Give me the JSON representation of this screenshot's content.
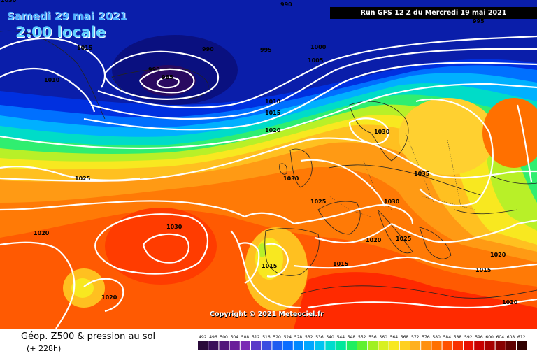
{
  "header": {
    "date": "Samedi 29 mai 2021",
    "time": "2:00 locale",
    "run": "Run GFS 12 Z du Mercredi 19 mai 2021"
  },
  "copyright": "Copyright © 2021 Meteociel.fr",
  "footer": {
    "title": "Géop. Z500 & pression au sol",
    "hours": "(+ 228h)"
  },
  "isobar_labels": [
    {
      "text": "990"
    },
    {
      "text": "995"
    },
    {
      "text": "1000"
    },
    {
      "text": "1005"
    },
    {
      "text": "1015"
    },
    {
      "text": "1010"
    },
    {
      "text": "990"
    },
    {
      "text": "990"
    },
    {
      "text": "985"
    },
    {
      "text": "1010"
    },
    {
      "text": "1015"
    },
    {
      "text": "1020"
    },
    {
      "text": "1030"
    },
    {
      "text": "1025"
    },
    {
      "text": "1030"
    },
    {
      "text": "1035"
    },
    {
      "text": "1025"
    },
    {
      "text": "1030"
    },
    {
      "text": "1030"
    },
    {
      "text": "1020"
    },
    {
      "text": "1025"
    },
    {
      "text": "1020"
    },
    {
      "text": "1015"
    },
    {
      "text": "1015"
    },
    {
      "text": "1015"
    },
    {
      "text": "1020"
    },
    {
      "text": "1020"
    },
    {
      "text": "1010"
    },
    {
      "text": "995"
    },
    {
      "text": "1030"
    }
  ],
  "legend": {
    "values": [
      "492",
      "496",
      "500",
      "504",
      "508",
      "512",
      "516",
      "520",
      "524",
      "528",
      "532",
      "536",
      "540",
      "544",
      "548",
      "552",
      "556",
      "560",
      "564",
      "568",
      "572",
      "576",
      "580",
      "584",
      "588",
      "592",
      "596",
      "600",
      "604",
      "608",
      "612"
    ],
    "colors": [
      "#2a0a3a",
      "#3a0f5a",
      "#52167a",
      "#6a1e9a",
      "#7a2ab4",
      "#5a3cc8",
      "#3a4ce0",
      "#1e5cf0",
      "#0a6cff",
      "#0088ff",
      "#00a6ff",
      "#00c4f0",
      "#00dccc",
      "#00e89a",
      "#20ee60",
      "#60f030",
      "#a0f020",
      "#d8f020",
      "#f8e820",
      "#ffd020",
      "#ffb020",
      "#ff9010",
      "#ff7000",
      "#ff5000",
      "#f83000",
      "#e81000",
      "#c80000",
      "#a80000",
      "#880000",
      "#600000",
      "#300000"
    ]
  }
}
